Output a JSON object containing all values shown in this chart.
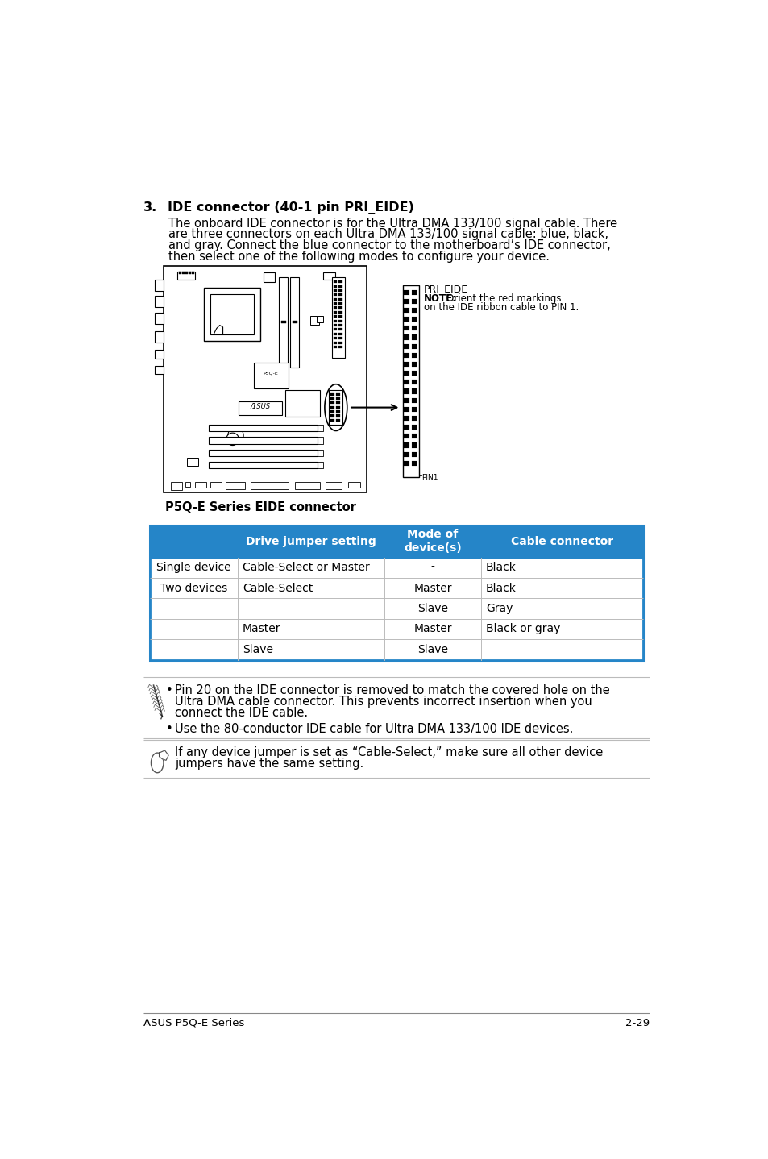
{
  "page_bg": "#ffffff",
  "section_number": "3.",
  "section_title": "IDE connector (40-1 pin PRI_EIDE)",
  "body_text_lines": [
    "The onboard IDE connector is for the Ultra DMA 133/100 signal cable. There",
    "are three connectors on each Ultra DMA 133/100 signal cable: blue, black,",
    "and gray. Connect the blue connector to the motherboard’s IDE connector,",
    "then select one of the following modes to configure your device."
  ],
  "caption": "P5Q-E Series EIDE connector",
  "connector_label": "PRI_EIDE",
  "connector_note_bold": "NOTE:",
  "connector_note_rest": "Orient the red markings",
  "connector_note2": "on the IDE ribbon cable to PIN 1.",
  "pin1_label": "PIN1",
  "table_header_bg": "#2585c8",
  "table_header_color": "#ffffff",
  "table_border_color": "#2585c8",
  "table_sep_color": "#bbbbbb",
  "table_headers": [
    "",
    "Drive jumper setting",
    "Mode of\ndevice(s)",
    "Cable connector"
  ],
  "table_rows": [
    [
      "Single device",
      "Cable-Select or Master",
      "-",
      "Black"
    ],
    [
      "Two devices",
      "Cable-Select",
      "Master",
      "Black"
    ],
    [
      "",
      "",
      "Slave",
      "Gray"
    ],
    [
      "",
      "Master",
      "Master",
      "Black or gray"
    ],
    [
      "",
      "Slave",
      "Slave",
      ""
    ]
  ],
  "note1_text_lines": [
    "Pin 20 on the IDE connector is removed to match the covered hole on the",
    "Ultra DMA cable connector. This prevents incorrect insertion when you",
    "connect the IDE cable."
  ],
  "note2_text": "Use the 80-conductor IDE cable for Ultra DMA 133/100 IDE devices.",
  "note3_text_lines": [
    "If any device jumper is set as “Cable-Select,” make sure all other device",
    "jumpers have the same setting."
  ],
  "footer_left": "ASUS P5Q-E Series",
  "footer_right": "2-29",
  "title_fontsize": 11.5,
  "body_fontsize": 10.5,
  "caption_fontsize": 10.5,
  "table_header_fontsize": 10,
  "table_body_fontsize": 10,
  "note_fontsize": 10.5,
  "footer_fontsize": 9.5
}
